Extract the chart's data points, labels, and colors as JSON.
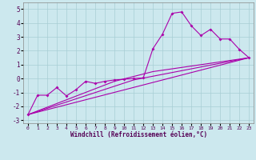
{
  "xlabel": "Windchill (Refroidissement éolien,°C)",
  "bg_color": "#cce8ee",
  "grid_color": "#a8cdd4",
  "line_color": "#aa00aa",
  "xlim": [
    -0.5,
    23.5
  ],
  "ylim": [
    -3.2,
    5.5
  ],
  "yticks": [
    -3,
    -2,
    -1,
    0,
    1,
    2,
    3,
    4,
    5
  ],
  "xticks": [
    0,
    1,
    2,
    3,
    4,
    5,
    6,
    7,
    8,
    9,
    10,
    11,
    12,
    13,
    14,
    15,
    16,
    17,
    18,
    19,
    20,
    21,
    22,
    23
  ],
  "series": [
    [
      0,
      -2.6
    ],
    [
      1,
      -1.2
    ],
    [
      2,
      -1.2
    ],
    [
      3,
      -0.65
    ],
    [
      4,
      -1.25
    ],
    [
      5,
      -0.8
    ],
    [
      6,
      -0.2
    ],
    [
      7,
      -0.35
    ],
    [
      8,
      -0.2
    ],
    [
      9,
      -0.1
    ],
    [
      10,
      -0.05
    ],
    [
      11,
      0.0
    ],
    [
      12,
      0.05
    ],
    [
      13,
      2.15
    ],
    [
      14,
      3.2
    ],
    [
      15,
      4.7
    ],
    [
      16,
      4.8
    ],
    [
      17,
      3.8
    ],
    [
      18,
      3.1
    ],
    [
      19,
      3.55
    ],
    [
      20,
      2.85
    ],
    [
      21,
      2.85
    ],
    [
      22,
      2.1
    ],
    [
      23,
      1.5
    ]
  ],
  "line2": [
    [
      0,
      -2.6
    ],
    [
      23,
      1.5
    ]
  ],
  "line3": [
    [
      0,
      -2.6
    ],
    [
      11,
      -0.1
    ],
    [
      23,
      1.5
    ]
  ],
  "line4": [
    [
      0,
      -2.6
    ],
    [
      9,
      -0.2
    ],
    [
      13,
      0.5
    ],
    [
      23,
      1.5
    ]
  ]
}
